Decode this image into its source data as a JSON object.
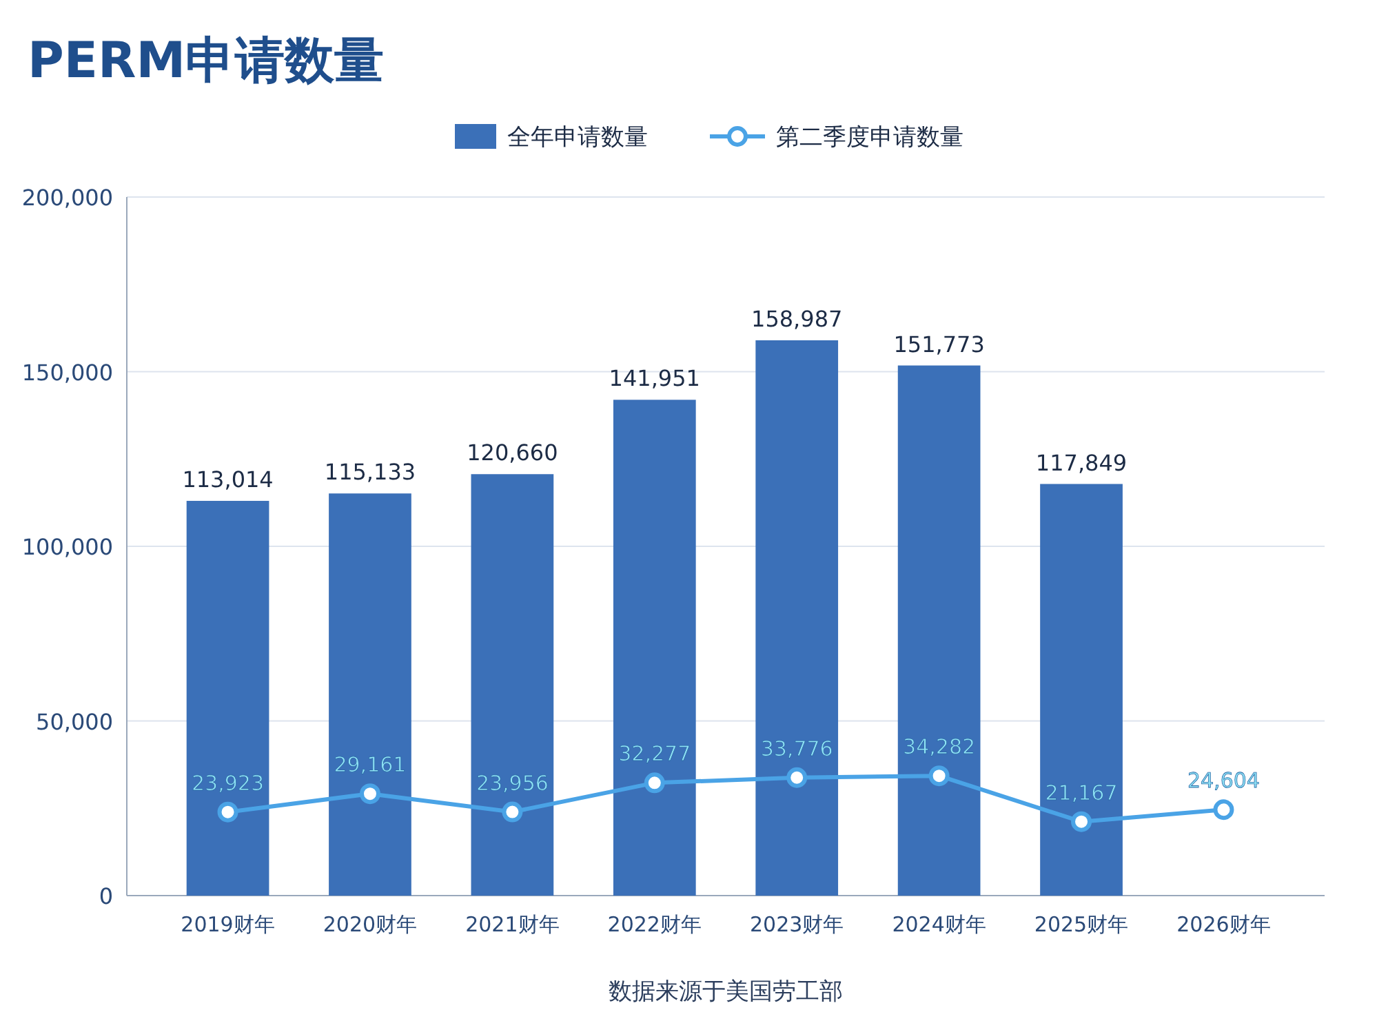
{
  "chart_data": {
    "type": "bar",
    "title": "PERM申请数量",
    "categories": [
      "2019财年",
      "2020财年",
      "2021财年",
      "2022财年",
      "2023财年",
      "2024财年",
      "2025财年",
      "2026财年"
    ],
    "series": [
      {
        "name": "全年申请数量",
        "color": "#3b70b8",
        "values": [
          113014,
          115133,
          120660,
          141951,
          158987,
          151773,
          117849,
          null
        ],
        "value_labels": [
          "113,014",
          "115,133",
          "120,660",
          "141,951",
          "158,987",
          "151,773",
          "117,849",
          null
        ]
      },
      {
        "name": "第二季度申请数量",
        "type": "line",
        "color": "#4aa3e6",
        "values": [
          23923,
          29161,
          23956,
          32277,
          33776,
          34282,
          21167,
          24604
        ],
        "value_labels": [
          "23,923",
          "29,161",
          "23,956",
          "32,277",
          "33,776",
          "34,282",
          "21,167",
          "24,604"
        ]
      }
    ],
    "ylim": [
      0,
      200000
    ],
    "yticks": [
      {
        "value": 0,
        "label": "0"
      },
      {
        "value": 50000,
        "label": "50,000"
      },
      {
        "value": 100000,
        "label": "100,000"
      },
      {
        "value": 150000,
        "label": "150,000"
      },
      {
        "value": 200000,
        "label": "200,000"
      }
    ],
    "grid": "y",
    "legend": "top",
    "marker": "circle",
    "line_style": "solid",
    "annotations": [
      "数据来源于美国劳工部"
    ]
  }
}
